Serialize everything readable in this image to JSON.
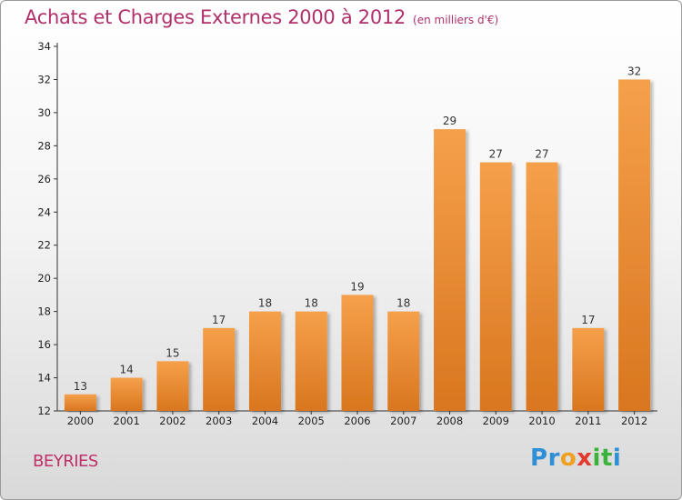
{
  "header": {
    "title": "Achats et Charges Externes 2000 à 2012",
    "subtitle": "(en milliers d'€)"
  },
  "footer": {
    "commune": "BEYRIES",
    "logo_letters": [
      {
        "char": "P",
        "color": "#2e8fd6"
      },
      {
        "char": "r",
        "color": "#2e8fd6"
      },
      {
        "char": "o",
        "color": "#f0a020"
      },
      {
        "char": "x",
        "color": "#e33a2e"
      },
      {
        "char": "i",
        "color": "#3bb33b"
      },
      {
        "char": "t",
        "color": "#3bb33b"
      },
      {
        "char": "i",
        "color": "#2e8fd6"
      }
    ]
  },
  "chart_data": {
    "type": "bar",
    "title": "Achats et Charges Externes 2000 à 2012",
    "subtitle": "(en milliers d'€)",
    "categories": [
      "2000",
      "2001",
      "2002",
      "2003",
      "2004",
      "2005",
      "2006",
      "2007",
      "2008",
      "2009",
      "2010",
      "2011",
      "2012"
    ],
    "values": [
      13,
      14,
      15,
      17,
      18,
      18,
      19,
      18,
      29,
      27,
      27,
      17,
      32
    ],
    "ylim": [
      12,
      34
    ],
    "yticks": [
      12,
      14,
      16,
      18,
      20,
      22,
      24,
      26,
      28,
      30,
      32,
      34
    ],
    "grid": false,
    "bar_color": "#f5a04a",
    "bar_color_dark": "#d9761f"
  }
}
